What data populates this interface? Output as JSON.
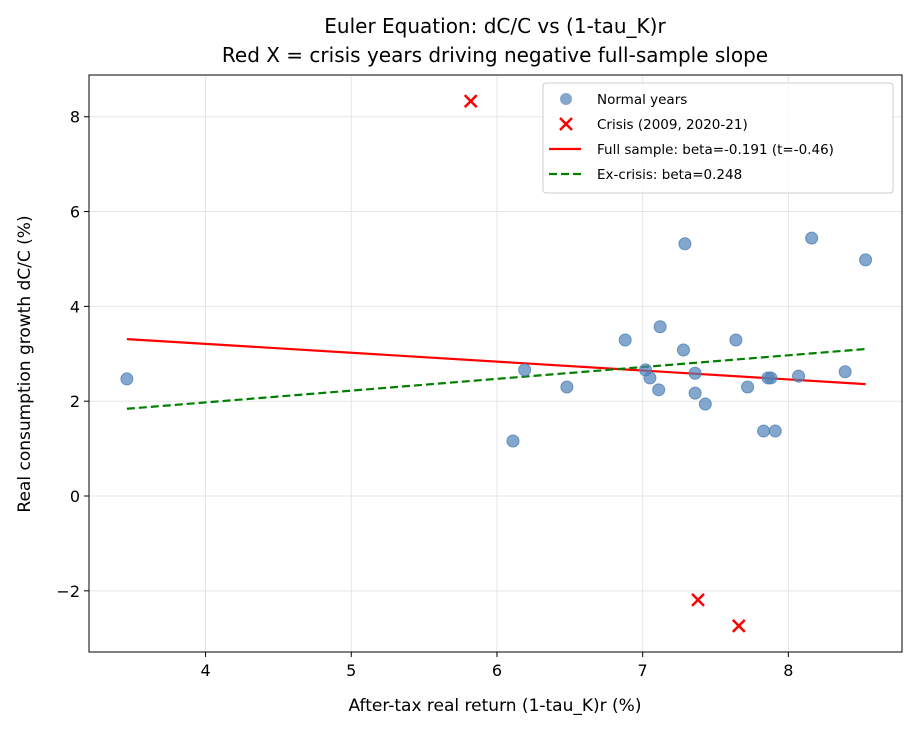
{
  "chart_data": {
    "type": "scatter",
    "title": "Euler Equation: dC/C vs (1-tau_K)r",
    "subtitle": "Red X = crisis years driving negative full-sample slope",
    "xlabel": "After-tax real return (1-tau_K)r (%)",
    "ylabel": "Real consumption growth dC/C (%)",
    "xlim": [
      3.2,
      8.78
    ],
    "ylim": [
      -3.29,
      8.88
    ],
    "xticks": [
      4,
      5,
      6,
      7,
      8
    ],
    "yticks": [
      -2,
      0,
      2,
      4,
      6,
      8
    ],
    "grid": true,
    "legend_position": "top-right",
    "series": [
      {
        "name": "Normal years",
        "kind": "scatter",
        "marker": "circle",
        "color": "#4f81b8",
        "points": [
          [
            3.46,
            2.47
          ],
          [
            6.11,
            1.16
          ],
          [
            6.19,
            2.66
          ],
          [
            6.48,
            2.3
          ],
          [
            6.88,
            3.29
          ],
          [
            7.02,
            2.66
          ],
          [
            7.05,
            2.49
          ],
          [
            7.11,
            2.24
          ],
          [
            7.12,
            3.57
          ],
          [
            7.29,
            5.32
          ],
          [
            7.28,
            3.08
          ],
          [
            7.36,
            2.59
          ],
          [
            7.36,
            2.17
          ],
          [
            7.43,
            1.94
          ],
          [
            7.64,
            3.29
          ],
          [
            7.72,
            2.3
          ],
          [
            7.83,
            1.37
          ],
          [
            7.91,
            1.37
          ],
          [
            7.86,
            2.49
          ],
          [
            7.88,
            2.49
          ],
          [
            8.07,
            2.53
          ],
          [
            8.16,
            5.44
          ],
          [
            8.39,
            2.62
          ],
          [
            8.53,
            4.98
          ]
        ]
      },
      {
        "name": "Crisis (2009, 2020-21)",
        "kind": "scatter",
        "marker": "x",
        "color": "#ff0000",
        "points": [
          [
            5.82,
            8.33
          ],
          [
            7.38,
            -2.19
          ],
          [
            7.66,
            -2.74
          ]
        ]
      },
      {
        "name": "Full sample: beta=-0.191 (t=-0.46)",
        "kind": "line",
        "style": "solid",
        "color": "#ff0000",
        "points": [
          [
            3.46,
            3.31
          ],
          [
            8.53,
            2.36
          ]
        ]
      },
      {
        "name": "Ex-crisis: beta=0.248",
        "kind": "line",
        "style": "dashed",
        "color": "#008000",
        "points": [
          [
            3.46,
            1.84
          ],
          [
            8.53,
            3.1
          ]
        ]
      }
    ]
  }
}
